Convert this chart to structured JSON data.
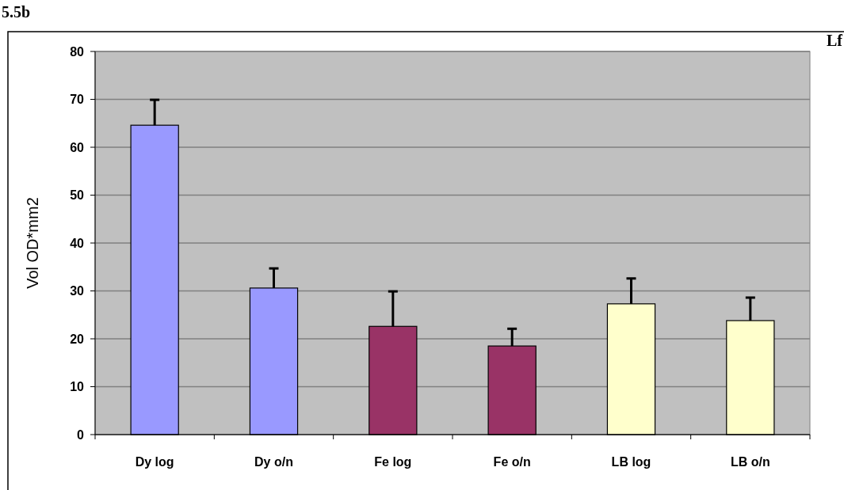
{
  "chart_data": {
    "type": "bar",
    "ylabel": "Vol OD*mm2",
    "categories": [
      "Dy log",
      "Dy o/n",
      "Fe log",
      "Fe o/n",
      "LB log",
      "LB o/n"
    ],
    "values": [
      64.6,
      30.6,
      22.6,
      18.5,
      27.3,
      23.8
    ],
    "colors": [
      "#9999ff",
      "#9999ff",
      "#993366",
      "#993366",
      "#ffffcc",
      "#ffffcc"
    ],
    "errors": [
      [
        64.6,
        69.9
      ],
      [
        30.6,
        34.7
      ],
      [
        22.6,
        29.9
      ],
      [
        18.5,
        22.1
      ],
      [
        27.3,
        32.6
      ],
      [
        23.8,
        28.6
      ]
    ],
    "ylim": [
      0,
      80
    ],
    "yticks": [
      0,
      10,
      20,
      30,
      40,
      50,
      60,
      70,
      80
    ],
    "grid": "y",
    "annotations": [
      "5.5b",
      "Lf"
    ]
  }
}
